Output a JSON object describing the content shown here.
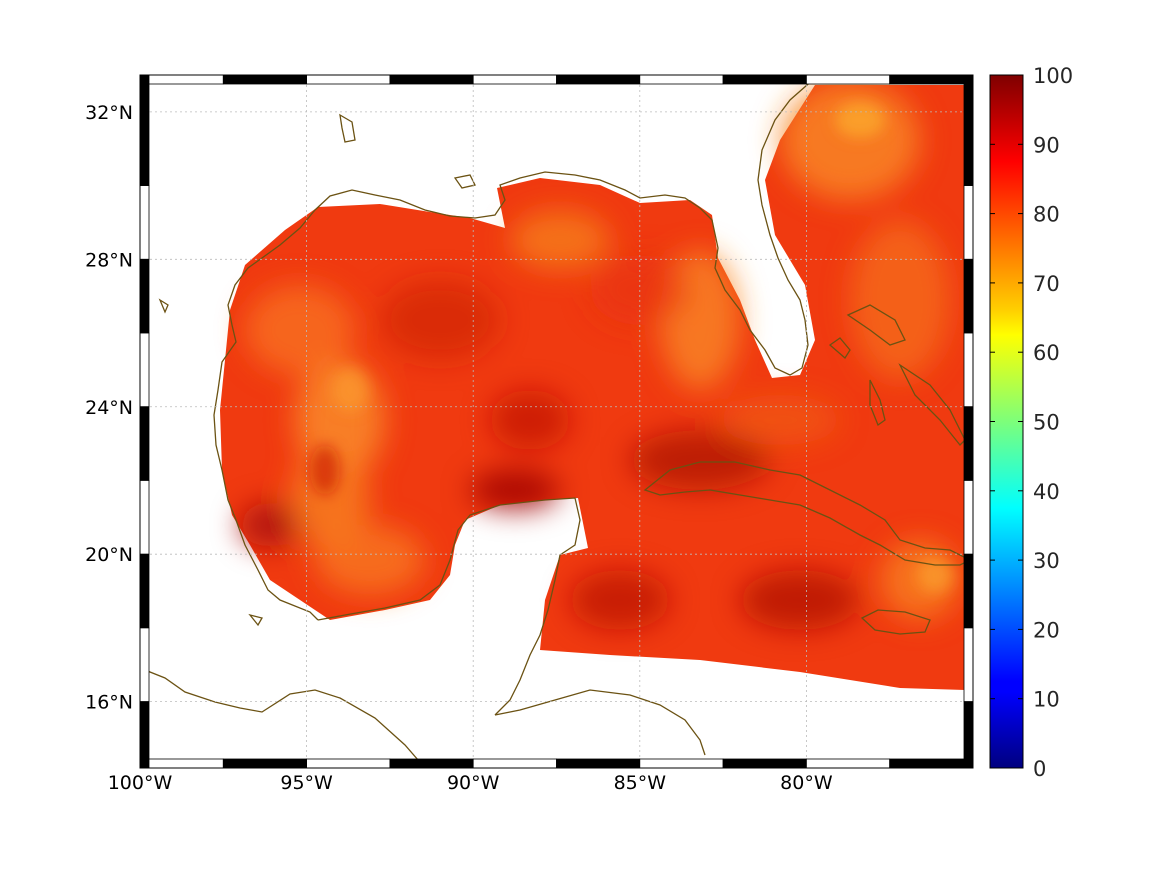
{
  "map": {
    "lon_range": [
      -100,
      -75
    ],
    "lat_range": [
      14.2,
      33
    ],
    "lon_ticks": [
      {
        "value": -100,
        "label": "100°W"
      },
      {
        "value": -95,
        "label": "95°W"
      },
      {
        "value": -90,
        "label": "90°W"
      },
      {
        "value": -85,
        "label": "85°W"
      },
      {
        "value": -80,
        "label": "80°W"
      }
    ],
    "lat_ticks": [
      {
        "value": 32,
        "label": "32°N"
      },
      {
        "value": 28,
        "label": "28°N"
      },
      {
        "value": 24,
        "label": "24°N"
      },
      {
        "value": 20,
        "label": "20°N"
      },
      {
        "value": 16,
        "label": "16°N"
      }
    ],
    "grid": true,
    "frame_style": "alternating black and white border",
    "coastline_color": "#6b5213",
    "field": "gridded values, mostly 80–95 over Gulf of Mexico, Caribbean and western Atlantic",
    "land_color": "#ffffff"
  },
  "colorbar": {
    "colormap": "jet",
    "range": [
      0,
      100
    ],
    "ticks": [
      "100",
      "90",
      "80",
      "70",
      "60",
      "50",
      "40",
      "30",
      "20",
      "10",
      "0"
    ]
  }
}
